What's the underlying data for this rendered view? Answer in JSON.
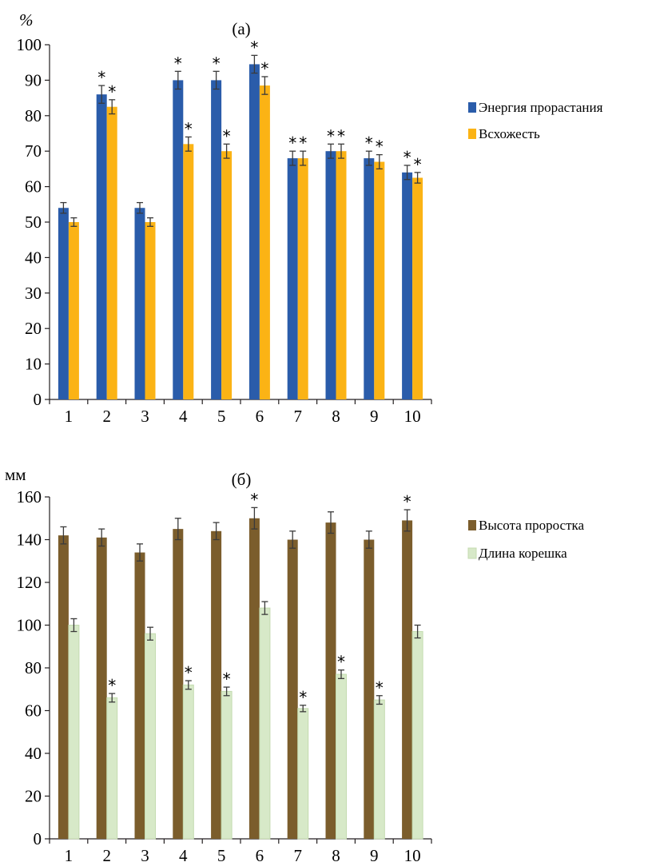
{
  "chart_data": [
    {
      "type": "bar",
      "title": "(a)",
      "ylabel": "%",
      "ylim": [
        0,
        100
      ],
      "yticks": [
        0,
        10,
        20,
        30,
        40,
        50,
        60,
        70,
        80,
        90,
        100
      ],
      "categories": [
        "1",
        "2",
        "3",
        "4",
        "5",
        "6",
        "7",
        "8",
        "9",
        "10"
      ],
      "legend_position": "right",
      "series": [
        {
          "name": "Энергия прорастания",
          "color": "#2a5caa",
          "values": [
            54,
            86,
            54,
            90,
            90,
            94.5,
            68,
            70,
            68,
            64
          ],
          "errors": [
            1.5,
            2.5,
            1.5,
            2.5,
            2.5,
            2.5,
            2,
            2,
            2,
            2
          ],
          "significant": [
            false,
            true,
            false,
            true,
            true,
            true,
            true,
            true,
            true,
            true
          ]
        },
        {
          "name": "Всхожесть",
          "color": "#fbb315",
          "values": [
            50,
            82.5,
            50,
            72,
            70,
            88.5,
            68,
            70,
            67,
            62.5
          ],
          "errors": [
            1.2,
            2,
            1.2,
            2,
            2,
            2.5,
            2,
            2,
            2,
            1.5
          ],
          "significant": [
            false,
            true,
            false,
            true,
            true,
            true,
            true,
            true,
            true,
            true
          ]
        }
      ]
    },
    {
      "type": "bar",
      "title": "(б)",
      "ylabel": "мм",
      "ylim": [
        0,
        160
      ],
      "yticks": [
        0,
        20,
        40,
        60,
        80,
        100,
        120,
        140,
        160
      ],
      "categories": [
        "1",
        "2",
        "3",
        "4",
        "5",
        "6",
        "7",
        "8",
        "9",
        "10"
      ],
      "legend_position": "right",
      "series": [
        {
          "name": "Высота проростка",
          "color": "#7b5d2c",
          "values": [
            142,
            141,
            134,
            145,
            144,
            150,
            140,
            148,
            140,
            149
          ],
          "errors": [
            4,
            4,
            4,
            5,
            4,
            5,
            4,
            5,
            4,
            5
          ],
          "significant": [
            false,
            false,
            false,
            false,
            false,
            true,
            false,
            false,
            false,
            true
          ]
        },
        {
          "name": "Длина корешка",
          "color": "#d7e9c8",
          "values": [
            100,
            66,
            96,
            72,
            69,
            108,
            61,
            77,
            65,
            97
          ],
          "errors": [
            3,
            2,
            3,
            2,
            2,
            3,
            1.5,
            2,
            2,
            3
          ],
          "significant": [
            false,
            true,
            false,
            true,
            true,
            false,
            true,
            true,
            true,
            false
          ]
        }
      ]
    }
  ]
}
